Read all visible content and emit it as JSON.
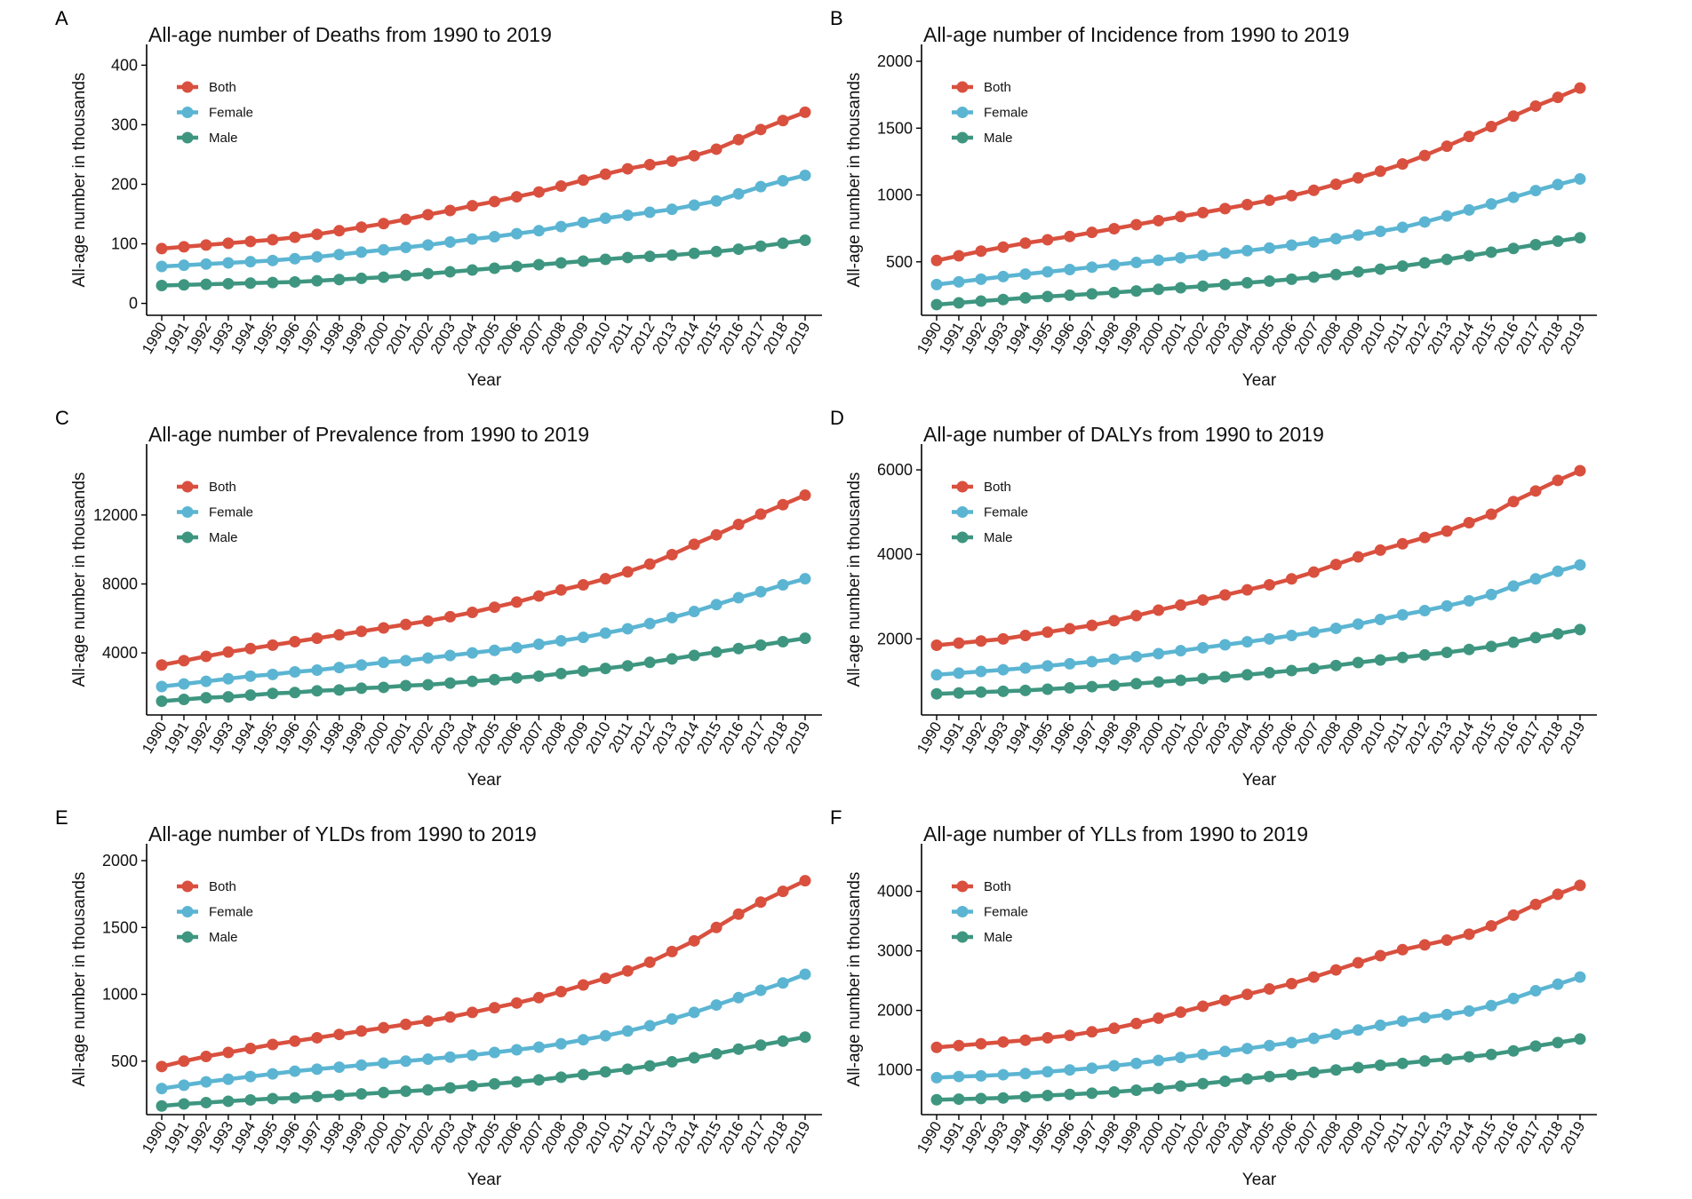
{
  "chart_data": [
    {
      "panel": "A",
      "type": "line",
      "title": "All-age number of Deaths from 1990 to 2019",
      "xlabel": "Year",
      "ylabel": "All-age number in thousands",
      "x": [
        1990,
        1991,
        1992,
        1993,
        1994,
        1995,
        1996,
        1997,
        1998,
        1999,
        2000,
        2001,
        2002,
        2003,
        2004,
        2005,
        2006,
        2007,
        2008,
        2009,
        2010,
        2011,
        2012,
        2013,
        2014,
        2015,
        2016,
        2017,
        2018,
        2019
      ],
      "ylim": [
        -20,
        420
      ],
      "yticks": [
        0,
        100,
        200,
        300,
        400
      ],
      "grid": false,
      "legend": "top-left",
      "series": [
        {
          "name": "Both",
          "color": "#D9503F",
          "values": [
            92,
            95,
            98,
            101,
            104,
            107,
            111,
            116,
            122,
            128,
            134,
            141,
            149,
            156,
            164,
            171,
            179,
            187,
            197,
            207,
            217,
            226,
            233,
            239,
            248,
            259,
            275,
            292,
            307,
            321
          ]
        },
        {
          "name": "Female",
          "color": "#5BB5D2",
          "values": [
            62,
            64,
            66,
            68,
            70,
            72,
            75,
            78,
            82,
            86,
            90,
            94,
            98,
            103,
            108,
            112,
            117,
            122,
            129,
            136,
            143,
            148,
            153,
            158,
            165,
            172,
            184,
            196,
            206,
            215
          ]
        },
        {
          "name": "Male",
          "color": "#3E9680",
          "values": [
            30,
            31,
            32,
            33,
            34,
            35,
            36,
            38,
            40,
            42,
            44,
            47,
            50,
            53,
            56,
            59,
            62,
            65,
            68,
            71,
            74,
            77,
            79,
            81,
            84,
            87,
            91,
            96,
            101,
            106
          ]
        }
      ]
    },
    {
      "panel": "B",
      "type": "line",
      "title": "All-age number of Incidence from 1990 to 2019",
      "xlabel": "Year",
      "ylabel": "All-age number in thousands",
      "x": [
        1990,
        1991,
        1992,
        1993,
        1994,
        1995,
        1996,
        1997,
        1998,
        1999,
        2000,
        2001,
        2002,
        2003,
        2004,
        2005,
        2006,
        2007,
        2008,
        2009,
        2010,
        2011,
        2012,
        2013,
        2014,
        2015,
        2016,
        2017,
        2018,
        2019
      ],
      "ylim": [
        100,
        2060
      ],
      "yticks": [
        500,
        1000,
        1500,
        2000
      ],
      "grid": false,
      "legend": "top-left",
      "series": [
        {
          "name": "Both",
          "color": "#D9503F",
          "values": [
            510,
            545,
            580,
            610,
            640,
            665,
            690,
            720,
            748,
            778,
            808,
            838,
            868,
            898,
            928,
            960,
            995,
            1035,
            1080,
            1128,
            1178,
            1232,
            1295,
            1365,
            1438,
            1512,
            1590,
            1665,
            1730,
            1800
          ]
        },
        {
          "name": "Female",
          "color": "#5BB5D2",
          "values": [
            330,
            350,
            370,
            390,
            408,
            425,
            442,
            460,
            478,
            495,
            512,
            530,
            548,
            565,
            583,
            603,
            625,
            648,
            673,
            700,
            728,
            758,
            798,
            843,
            888,
            933,
            983,
            1033,
            1078,
            1120
          ]
        },
        {
          "name": "Male",
          "color": "#3E9680",
          "values": [
            180,
            193,
            206,
            218,
            230,
            240,
            250,
            260,
            270,
            282,
            294,
            306,
            318,
            330,
            343,
            356,
            370,
            386,
            405,
            425,
            445,
            468,
            492,
            518,
            545,
            572,
            600,
            628,
            655,
            680
          ]
        }
      ]
    },
    {
      "panel": "C",
      "type": "line",
      "title": "All-age number of Prevalence from 1990 to 2019",
      "xlabel": "Year",
      "ylabel": "All-age number in thousands",
      "x": [
        1990,
        1991,
        1992,
        1993,
        1994,
        1995,
        1996,
        1997,
        1998,
        1999,
        2000,
        2001,
        2002,
        2003,
        2004,
        2005,
        2006,
        2007,
        2008,
        2009,
        2010,
        2011,
        2012,
        2013,
        2014,
        2015,
        2016,
        2017,
        2018,
        2019
      ],
      "ylim": [
        400,
        15600
      ],
      "yticks": [
        4000,
        8000,
        12000
      ],
      "grid": false,
      "legend": "top-left",
      "series": [
        {
          "name": "Both",
          "color": "#D9503F",
          "values": [
            3300,
            3550,
            3800,
            4050,
            4250,
            4450,
            4650,
            4850,
            5050,
            5250,
            5450,
            5650,
            5850,
            6100,
            6350,
            6650,
            6950,
            7300,
            7650,
            7950,
            8300,
            8700,
            9150,
            9700,
            10300,
            10850,
            11450,
            12050,
            12600,
            13150
          ]
        },
        {
          "name": "Female",
          "color": "#5BB5D2",
          "values": [
            2050,
            2200,
            2350,
            2500,
            2650,
            2750,
            2900,
            3000,
            3150,
            3300,
            3450,
            3550,
            3700,
            3850,
            4000,
            4150,
            4300,
            4500,
            4700,
            4900,
            5150,
            5400,
            5700,
            6050,
            6400,
            6800,
            7200,
            7550,
            7950,
            8300
          ]
        },
        {
          "name": "Male",
          "color": "#3E9680",
          "values": [
            1200,
            1300,
            1400,
            1450,
            1550,
            1650,
            1700,
            1800,
            1850,
            1950,
            2000,
            2100,
            2150,
            2250,
            2350,
            2450,
            2550,
            2650,
            2800,
            2950,
            3100,
            3250,
            3450,
            3650,
            3850,
            4050,
            4250,
            4450,
            4650,
            4850
          ]
        }
      ]
    },
    {
      "panel": "D",
      "type": "line",
      "title": "All-age number of DALYs from 1990 to 2019",
      "xlabel": "Year",
      "ylabel": "All-age number in thousands",
      "x": [
        1990,
        1991,
        1992,
        1993,
        1994,
        1995,
        1996,
        1997,
        1998,
        1999,
        2000,
        2001,
        2002,
        2003,
        2004,
        2005,
        2006,
        2007,
        2008,
        2009,
        2010,
        2011,
        2012,
        2013,
        2014,
        2015,
        2016,
        2017,
        2018,
        2019
      ],
      "ylim": [
        200,
        6400
      ],
      "yticks": [
        2000,
        4000,
        6000
      ],
      "grid": false,
      "legend": "top-left",
      "series": [
        {
          "name": "Both",
          "color": "#D9503F",
          "values": [
            1850,
            1900,
            1950,
            2000,
            2080,
            2160,
            2240,
            2320,
            2430,
            2550,
            2680,
            2800,
            2920,
            3040,
            3160,
            3280,
            3420,
            3580,
            3760,
            3940,
            4100,
            4250,
            4400,
            4550,
            4750,
            4950,
            5250,
            5500,
            5750,
            5980
          ]
        },
        {
          "name": "Female",
          "color": "#5BB5D2",
          "values": [
            1150,
            1190,
            1230,
            1270,
            1310,
            1360,
            1410,
            1460,
            1520,
            1580,
            1650,
            1720,
            1790,
            1860,
            1930,
            2000,
            2080,
            2160,
            2250,
            2350,
            2460,
            2570,
            2670,
            2780,
            2900,
            3050,
            3250,
            3420,
            3600,
            3750
          ]
        },
        {
          "name": "Male",
          "color": "#3E9680",
          "values": [
            700,
            720,
            740,
            760,
            780,
            810,
            840,
            870,
            900,
            940,
            980,
            1020,
            1060,
            1100,
            1150,
            1200,
            1250,
            1300,
            1370,
            1440,
            1500,
            1560,
            1620,
            1680,
            1750,
            1820,
            1920,
            2030,
            2120,
            2220
          ]
        }
      ]
    },
    {
      "panel": "E",
      "type": "line",
      "title": "All-age number of YLDs from 1990 to 2019",
      "xlabel": "Year",
      "ylabel": "All-age number in thousands",
      "x": [
        1990,
        1991,
        1992,
        1993,
        1994,
        1995,
        1996,
        1997,
        1998,
        1999,
        2000,
        2001,
        2002,
        2003,
        2004,
        2005,
        2006,
        2007,
        2008,
        2009,
        2010,
        2011,
        2012,
        2013,
        2014,
        2015,
        2016,
        2017,
        2018,
        2019
      ],
      "ylim": [
        100,
        2060
      ],
      "yticks": [
        500,
        1000,
        1500,
        2000
      ],
      "grid": false,
      "legend": "top-left",
      "series": [
        {
          "name": "Both",
          "color": "#D9503F",
          "values": [
            460,
            500,
            535,
            565,
            595,
            625,
            650,
            675,
            700,
            725,
            750,
            775,
            800,
            830,
            865,
            900,
            935,
            975,
            1020,
            1070,
            1120,
            1175,
            1240,
            1320,
            1400,
            1500,
            1600,
            1690,
            1770,
            1850
          ]
        },
        {
          "name": "Female",
          "color": "#5BB5D2",
          "values": [
            295,
            320,
            345,
            365,
            385,
            405,
            425,
            440,
            455,
            470,
            485,
            500,
            515,
            530,
            545,
            565,
            585,
            605,
            630,
            660,
            690,
            725,
            765,
            815,
            865,
            920,
            975,
            1030,
            1085,
            1150
          ]
        },
        {
          "name": "Male",
          "color": "#3E9680",
          "values": [
            165,
            180,
            190,
            200,
            210,
            220,
            225,
            235,
            245,
            255,
            265,
            275,
            285,
            300,
            315,
            330,
            345,
            360,
            380,
            400,
            420,
            440,
            465,
            495,
            525,
            555,
            590,
            620,
            650,
            680
          ]
        }
      ]
    },
    {
      "panel": "F",
      "type": "line",
      "title": "All-age number of YLLs from 1990 to 2019",
      "xlabel": "Year",
      "ylabel": "All-age number in thousands",
      "x": [
        1990,
        1991,
        1992,
        1993,
        1994,
        1995,
        1996,
        1997,
        1998,
        1999,
        2000,
        2001,
        2002,
        2003,
        2004,
        2005,
        2006,
        2007,
        2008,
        2009,
        2010,
        2011,
        2012,
        2013,
        2014,
        2015,
        2016,
        2017,
        2018,
        2019
      ],
      "ylim": [
        250,
        4650
      ],
      "yticks": [
        1000,
        2000,
        3000,
        4000
      ],
      "grid": false,
      "legend": "top-left",
      "series": [
        {
          "name": "Both",
          "color": "#D9503F",
          "values": [
            1380,
            1410,
            1440,
            1470,
            1500,
            1540,
            1580,
            1640,
            1700,
            1780,
            1870,
            1970,
            2070,
            2170,
            2270,
            2360,
            2450,
            2560,
            2680,
            2800,
            2920,
            3020,
            3100,
            3180,
            3280,
            3420,
            3600,
            3780,
            3950,
            4100
          ]
        },
        {
          "name": "Female",
          "color": "#5BB5D2",
          "values": [
            870,
            890,
            900,
            920,
            940,
            970,
            1000,
            1030,
            1070,
            1110,
            1160,
            1210,
            1260,
            1310,
            1360,
            1410,
            1460,
            1530,
            1600,
            1670,
            1750,
            1820,
            1880,
            1930,
            1990,
            2080,
            2200,
            2330,
            2440,
            2560
          ]
        },
        {
          "name": "Male",
          "color": "#3E9680",
          "values": [
            500,
            510,
            520,
            530,
            550,
            570,
            590,
            610,
            630,
            660,
            690,
            730,
            770,
            810,
            850,
            890,
            920,
            960,
            1000,
            1040,
            1080,
            1110,
            1150,
            1180,
            1220,
            1260,
            1320,
            1400,
            1460,
            1520
          ]
        }
      ]
    }
  ]
}
